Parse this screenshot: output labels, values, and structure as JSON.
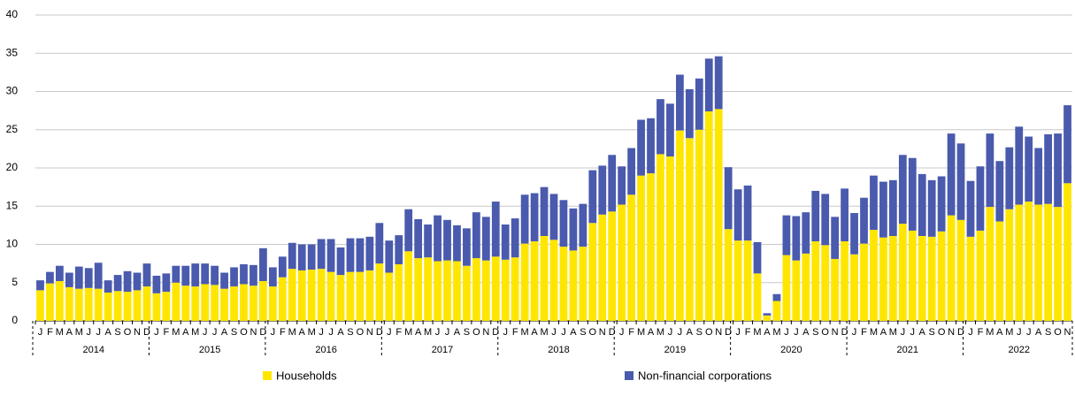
{
  "chart_data": {
    "type": "stacked_bar",
    "categories": [
      "J",
      "F",
      "M",
      "A",
      "M",
      "J",
      "J",
      "A",
      "S",
      "O",
      "N",
      "D",
      "J",
      "F",
      "M",
      "A",
      "M",
      "J",
      "J",
      "A",
      "S",
      "O",
      "N",
      "D",
      "J",
      "F",
      "M",
      "A",
      "M",
      "J",
      "J",
      "A",
      "S",
      "O",
      "N",
      "D",
      "J",
      "F",
      "M",
      "A",
      "M",
      "J",
      "J",
      "A",
      "S",
      "O",
      "N",
      "D",
      "J",
      "F",
      "M",
      "A",
      "M",
      "J",
      "J",
      "A",
      "S",
      "O",
      "N",
      "D",
      "J",
      "F",
      "M",
      "A",
      "M",
      "J",
      "J",
      "A",
      "S",
      "O",
      "N",
      "D",
      "J",
      "F",
      "M",
      "A",
      "M",
      "J",
      "J",
      "A",
      "S",
      "O",
      "N",
      "D",
      "J",
      "F",
      "M",
      "A",
      "M",
      "J",
      "J",
      "A",
      "S",
      "O",
      "N",
      "D",
      "J",
      "F",
      "M",
      "A",
      "M",
      "J",
      "J",
      "A",
      "S",
      "O",
      "N"
    ],
    "years": [
      "2014",
      "2015",
      "2016",
      "2017",
      "2018",
      "2019",
      "2020",
      "2021",
      "2022"
    ],
    "series": [
      {
        "name": "Households",
        "color": "#ffe600",
        "values": [
          4.0,
          4.9,
          5.2,
          4.4,
          4.2,
          4.3,
          4.2,
          3.7,
          3.9,
          3.8,
          4.0,
          4.5,
          3.6,
          3.8,
          5.0,
          4.6,
          4.5,
          4.8,
          4.7,
          4.2,
          4.5,
          4.8,
          4.6,
          5.2,
          4.5,
          5.7,
          6.8,
          6.6,
          6.7,
          6.8,
          6.4,
          6.0,
          6.4,
          6.4,
          6.6,
          7.5,
          6.3,
          7.4,
          9.1,
          8.2,
          8.3,
          7.8,
          7.9,
          7.8,
          7.2,
          8.2,
          7.9,
          8.4,
          8.0,
          8.3,
          10.1,
          10.4,
          11.1,
          10.6,
          9.7,
          9.2,
          9.7,
          12.8,
          13.9,
          14.3,
          15.2,
          16.5,
          19.0,
          19.3,
          21.8,
          21.5,
          24.9,
          23.9,
          25.0,
          27.4,
          27.7,
          12.0,
          10.5,
          10.5,
          6.2,
          0.7,
          2.6,
          8.6,
          7.9,
          8.8,
          10.4,
          9.9,
          8.1,
          10.4,
          8.7,
          10.1,
          11.9,
          10.9,
          11.1,
          12.7,
          11.8,
          11.1,
          11.0,
          11.7,
          13.8,
          13.2,
          11.0,
          11.8,
          14.9,
          13.0,
          14.6,
          15.2,
          15.6,
          15.2,
          15.3,
          14.9,
          18.0
        ]
      },
      {
        "name": "Non-financial corporations",
        "color": "#4a5aad",
        "values": [
          1.3,
          1.5,
          2.0,
          1.9,
          2.9,
          2.6,
          3.4,
          1.6,
          2.1,
          2.7,
          2.3,
          3.0,
          2.3,
          2.4,
          2.2,
          2.6,
          3.0,
          2.7,
          2.5,
          2.1,
          2.5,
          2.6,
          2.7,
          4.3,
          2.5,
          2.7,
          3.4,
          3.4,
          3.3,
          3.9,
          4.3,
          3.6,
          4.4,
          4.4,
          4.4,
          5.3,
          4.2,
          3.8,
          5.5,
          5.1,
          4.3,
          6.0,
          5.3,
          4.7,
          4.9,
          6.0,
          5.7,
          7.2,
          4.6,
          5.1,
          6.4,
          6.3,
          6.4,
          6.0,
          6.1,
          5.5,
          5.6,
          6.9,
          6.4,
          7.4,
          5.0,
          6.1,
          7.3,
          7.2,
          7.2,
          6.9,
          7.3,
          6.4,
          6.7,
          6.9,
          6.9,
          8.1,
          6.7,
          7.2,
          4.1,
          0.3,
          0.9,
          5.2,
          5.8,
          5.4,
          6.6,
          6.7,
          5.5,
          6.9,
          5.4,
          6.0,
          7.1,
          7.3,
          7.3,
          9.0,
          9.5,
          8.1,
          7.4,
          7.2,
          10.7,
          10.0,
          7.3,
          8.4,
          9.6,
          7.9,
          8.1,
          10.2,
          8.5,
          7.4,
          9.1,
          9.6,
          10.2
        ]
      }
    ],
    "ylim": [
      0,
      40
    ],
    "yticks": [
      0,
      5,
      10,
      15,
      20,
      25,
      30,
      35,
      40
    ],
    "grid": true,
    "legend": "bottom"
  }
}
